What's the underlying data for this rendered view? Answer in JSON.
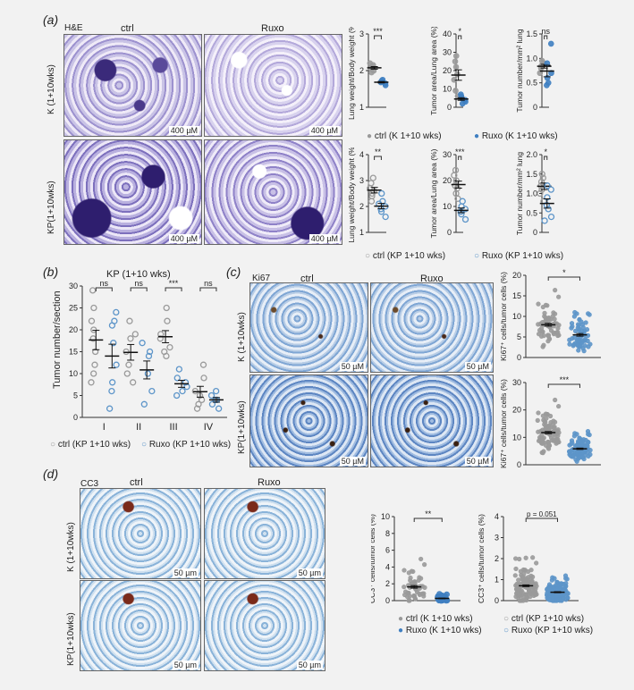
{
  "panel_a": {
    "letter": "(a)",
    "stain": "H&E",
    "col_ctrl": "ctrl",
    "col_ruxo": "Ruxo",
    "row_k": "K (1+10wks)",
    "row_kp": "KP(1+10wks)",
    "scale": "400 µM",
    "legend_k_ctrl": "ctrl (K 1+10 wks)",
    "legend_k_ruxo": "Ruxo (K 1+10 wks)",
    "legend_kp_ctrl": "ctrl (KP 1+10 wks)",
    "legend_kp_ruxo": "Ruxo (KP 1+10 wks)"
  },
  "panel_b": {
    "letter": "(b)",
    "title": "KP (1+10 wks)",
    "ylabel": "Tumor number/section",
    "legend_ctrl": "ctrl (KP 1+10 wks)",
    "legend_ruxo": "Ruxo (KP 1+10 wks)"
  },
  "panel_c": {
    "letter": "(c)",
    "stain": "Ki67",
    "col_ctrl": "ctrl",
    "col_ruxo": "Ruxo",
    "row_k": "K (1+10wks)",
    "row_kp": "KP(1+10wks)",
    "scale": "50 µM"
  },
  "panel_d": {
    "letter": "(d)",
    "stain": "CC3",
    "col_ctrl": "ctrl",
    "col_ruxo": "Ruxo",
    "row_k": "K (1+10wks)",
    "row_kp": "KP(1+10wks)",
    "scale": "50 µm",
    "legend_k_ctrl": "ctrl (K 1+10 wks)",
    "legend_k_ruxo": "Ruxo (K 1+10 wks)",
    "legend_kp_ctrl": "ctrl (KP 1+10 wks)",
    "legend_kp_ruxo": "Ruxo (KP 1+10 wks)"
  },
  "colors": {
    "ctrl": "#9a9a9a",
    "ruxo_k": "#3f7fc1",
    "ruxo_kp": "#5d95c9"
  },
  "chart_data": [
    {
      "id": "a1",
      "type": "scatter",
      "ylabel": "Lung weight/Body weight (%)",
      "ylim": [
        1,
        3
      ],
      "yticks": [
        "1",
        "2",
        "3"
      ],
      "sig": "***",
      "series": [
        {
          "group": "ctrl",
          "values": [
            2.05,
            2.1,
            2.2,
            1.95,
            2.0,
            2.15
          ]
        },
        {
          "group": "ruxo",
          "values": [
            1.65,
            1.7,
            1.75,
            1.6,
            1.72,
            1.68
          ]
        }
      ]
    },
    {
      "id": "a2",
      "type": "scatter",
      "ylabel": "Tumor area/Lung area (%)",
      "ylim": [
        0,
        40
      ],
      "yticks": [
        "0",
        "10",
        "20",
        "30",
        "40"
      ],
      "sig": "*",
      "series": [
        {
          "group": "ctrl",
          "values": [
            25,
            28,
            15,
            9,
            6,
            18,
            22
          ]
        },
        {
          "group": "ruxo",
          "values": [
            4,
            6,
            2,
            3,
            5,
            7
          ]
        }
      ]
    },
    {
      "id": "a3",
      "type": "scatter",
      "ylabel": "Tumor number/mm² lung",
      "ylim": [
        0,
        1.5
      ],
      "yticks": [
        "0",
        "0.5",
        "1.0",
        "1.5"
      ],
      "sig": "ns",
      "series": [
        {
          "group": "ctrl",
          "values": [
            0.8,
            0.95,
            0.7,
            0.85,
            0.9
          ]
        },
        {
          "group": "ruxo",
          "values": [
            1.3,
            0.9,
            0.5,
            0.7,
            0.6,
            0.45
          ]
        }
      ]
    },
    {
      "id": "a4",
      "type": "scatter",
      "ylabel": "Lung weight/Body weight (%)",
      "ylim": [
        1,
        4
      ],
      "yticks": [
        "1",
        "2",
        "3",
        "4"
      ],
      "sig": "**",
      "series": [
        {
          "group": "ctrl",
          "values": [
            2.9,
            2.5,
            2.7,
            2.2,
            2.6,
            3.1,
            2.4
          ]
        },
        {
          "group": "ruxo",
          "values": [
            2.0,
            1.8,
            2.2,
            1.6,
            2.5,
            1.9,
            2.1
          ]
        }
      ]
    },
    {
      "id": "a5",
      "type": "scatter",
      "ylabel": "Tumor area/Lung area (%)",
      "ylim": [
        0,
        30
      ],
      "yticks": [
        "0",
        "10",
        "20",
        "30"
      ],
      "sig": "***",
      "series": [
        {
          "group": "ctrl",
          "values": [
            18,
            20,
            22,
            24,
            13,
            17,
            15
          ]
        },
        {
          "group": "ruxo",
          "values": [
            9,
            7,
            12,
            5,
            10,
            8
          ]
        }
      ]
    },
    {
      "id": "a6",
      "type": "scatter",
      "ylabel": "Tumor number/mm² lung",
      "ylim": [
        0,
        2.0
      ],
      "yticks": [
        "0",
        "0.5",
        "1.0",
        "1.5",
        "2.0"
      ],
      "sig": "*",
      "series": [
        {
          "group": "ctrl",
          "values": [
            1.2,
            1.5,
            1.0,
            1.3,
            0.8,
            1.4,
            1.1
          ]
        },
        {
          "group": "ruxo",
          "values": [
            1.1,
            0.9,
            0.6,
            0.4,
            1.2,
            0.7,
            0.3
          ]
        }
      ]
    },
    {
      "id": "b",
      "type": "scatter",
      "ylabel": "Tumor number/section",
      "ylim": [
        0,
        30
      ],
      "yticks": [
        "0",
        "5",
        "10",
        "15",
        "20",
        "25",
        "30"
      ],
      "categories": [
        "I",
        "II",
        "III",
        "IV"
      ],
      "sig": [
        "ns",
        "ns",
        "***",
        "ns"
      ],
      "series": [
        {
          "group": "ctrl",
          "values": [
            [
              29,
              25,
              22,
              18,
              15,
              12,
              10,
              8,
              20
            ],
            [
              22,
              18,
              15,
              12,
              10,
              8,
              19
            ],
            [
              25,
              22,
              19,
              15,
              16,
              18,
              14
            ],
            [
              12,
              9,
              6,
              5,
              4,
              3,
              2
            ]
          ]
        },
        {
          "group": "ruxo",
          "values": [
            [
              24,
              21,
              17,
              12,
              8,
              6,
              2,
              22
            ],
            [
              17,
              14,
              10,
              6,
              3,
              15
            ],
            [
              11,
              8,
              6,
              5,
              7,
              9
            ],
            [
              6,
              5,
              4,
              3,
              2,
              4
            ]
          ]
        }
      ]
    },
    {
      "id": "c1",
      "type": "scatter",
      "ylabel": "Ki67⁺ cells/tumor cells (%)",
      "ylim": [
        0,
        20
      ],
      "yticks": [
        "0",
        "5",
        "10",
        "15",
        "20"
      ],
      "sig": "*",
      "series": [
        {
          "group": "ctrl",
          "n": 60,
          "mean": 7,
          "spread": 5
        },
        {
          "group": "ruxo",
          "n": 60,
          "mean": 5,
          "spread": 4
        }
      ]
    },
    {
      "id": "c2",
      "type": "scatter",
      "ylabel": "Ki67⁺ cells/tumor cells (%)",
      "ylim": [
        0,
        30
      ],
      "yticks": [
        "0",
        "10",
        "20",
        "30"
      ],
      "sig": "***",
      "series": [
        {
          "group": "ctrl",
          "n": 90,
          "mean": 10.5,
          "spread": 7
        },
        {
          "group": "ruxo",
          "n": 90,
          "mean": 5.5,
          "spread": 4
        }
      ]
    },
    {
      "id": "d1",
      "type": "scatter",
      "ylabel": "CC3⁺ cells/tumor cells (%)",
      "ylim": [
        0,
        10
      ],
      "yticks": [
        "0",
        "2",
        "4",
        "6",
        "8",
        "10"
      ],
      "sig": "**",
      "series": [
        {
          "group": "ctrl",
          "n": 50,
          "mean": 1.2,
          "spread": 2
        },
        {
          "group": "ruxo",
          "n": 40,
          "mean": 0.2,
          "spread": 0.4
        }
      ]
    },
    {
      "id": "d2",
      "type": "scatter",
      "ylabel": "CC3⁺ cells/tumor cells (%)",
      "ylim": [
        0,
        4
      ],
      "yticks": [
        "0",
        "1",
        "2",
        "3",
        "4"
      ],
      "sig": "p = 0.051",
      "series": [
        {
          "group": "ctrl",
          "n": 120,
          "mean": 0.55,
          "spread": 0.8
        },
        {
          "group": "ruxo",
          "n": 120,
          "mean": 0.35,
          "spread": 0.5
        }
      ]
    }
  ]
}
